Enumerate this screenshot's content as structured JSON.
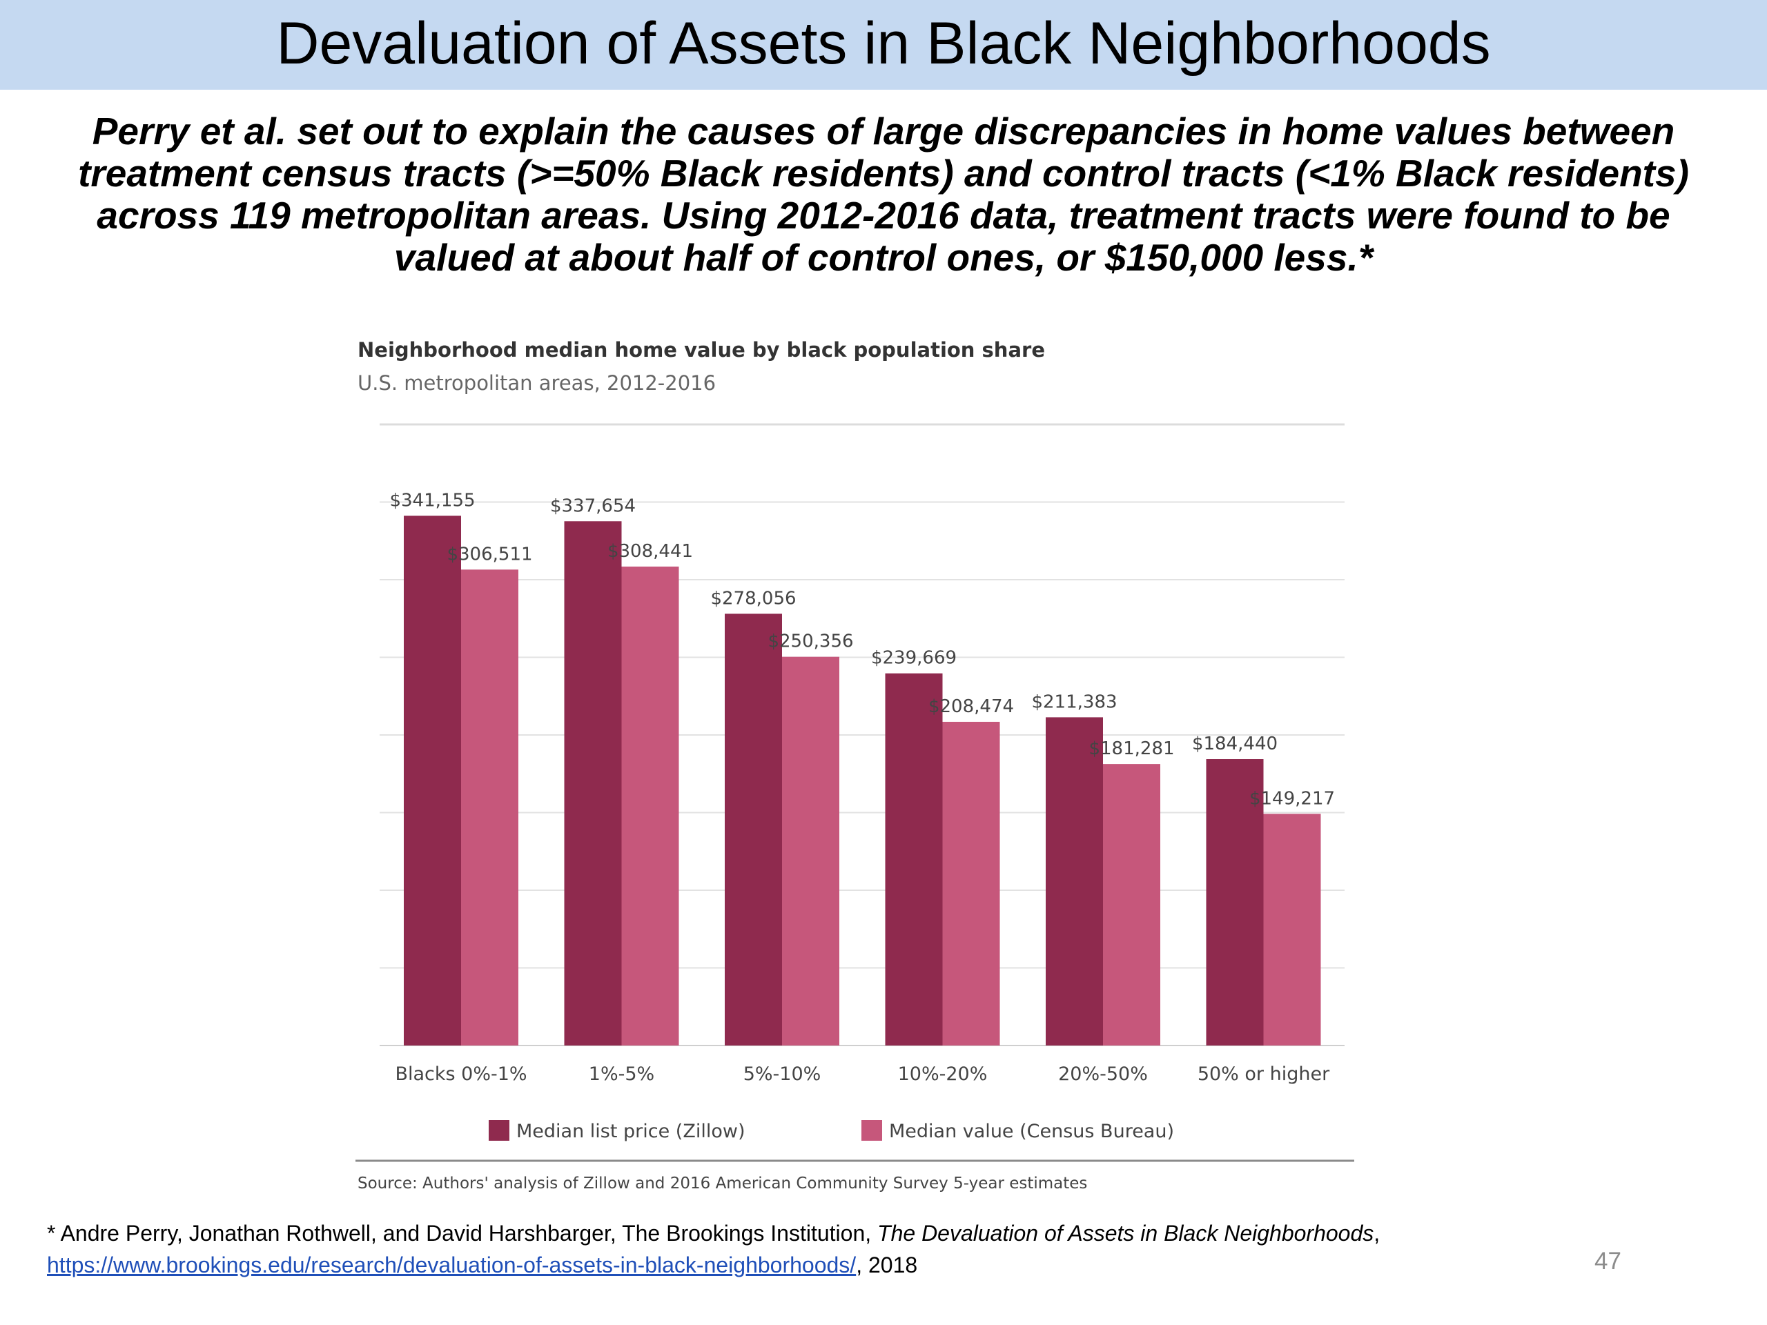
{
  "slide": {
    "title": "Devaluation of Assets in Black Neighborhoods",
    "intro": "Perry et al. set out to explain the causes of large discrepancies in home values between treatment census tracts (>=50% Black residents) and control tracts (<1% Black residents) across 119 metropolitan areas. Using 2012-2016 data, treatment tracts were found to be valued at about half of control ones, or $150,000 less.*",
    "footnote_prefix": "* Andre Perry, Jonathan Rothwell, and David Harshbarger,  The Brookings Institution, ",
    "footnote_italic": "The Devaluation of Assets in Black Neighborhoods",
    "footnote_comma": ",",
    "footnote_link": "https://www.brookings.edu/research/devaluation-of-assets-in-black-neighborhoods/",
    "footnote_suffix": ", 2018",
    "page_number": "47"
  },
  "colors": {
    "title_bar": "#c5d9f1",
    "series_dark": "#8f2a4e",
    "series_light": "#c6577b",
    "gridline": "#e2e2e2",
    "link": "#1f4fb8"
  },
  "chart_data": {
    "type": "bar",
    "title": "Neighborhood median home value by black population share",
    "subtitle": "U.S. metropolitan areas, 2012-2016",
    "categories": [
      "Blacks 0%-1%",
      "1%-5%",
      "5%-10%",
      "10%-20%",
      "20%-50%",
      "50% or higher"
    ],
    "series": [
      {
        "name": "Median list price (Zillow)",
        "color": "#8f2a4e",
        "values": [
          341155,
          337654,
          278056,
          239669,
          211383,
          184440
        ],
        "labels": [
          "$341,155",
          "$337,654",
          "$278,056",
          "$239,669",
          "$211,383",
          "$184,440"
        ]
      },
      {
        "name": "Median value (Census Bureau)",
        "color": "#c6577b",
        "values": [
          306511,
          308441,
          250356,
          208474,
          181281,
          149217
        ],
        "labels": [
          "$306,511",
          "$308,441",
          "$250,356",
          "$208,474",
          "$181,281",
          "$149,217"
        ]
      }
    ],
    "ylim": [
      0,
      400000
    ],
    "grid": true,
    "legend_position": "bottom",
    "source": "Source: Authors' analysis of Zillow and 2016 American Community Survey 5-year estimates"
  }
}
